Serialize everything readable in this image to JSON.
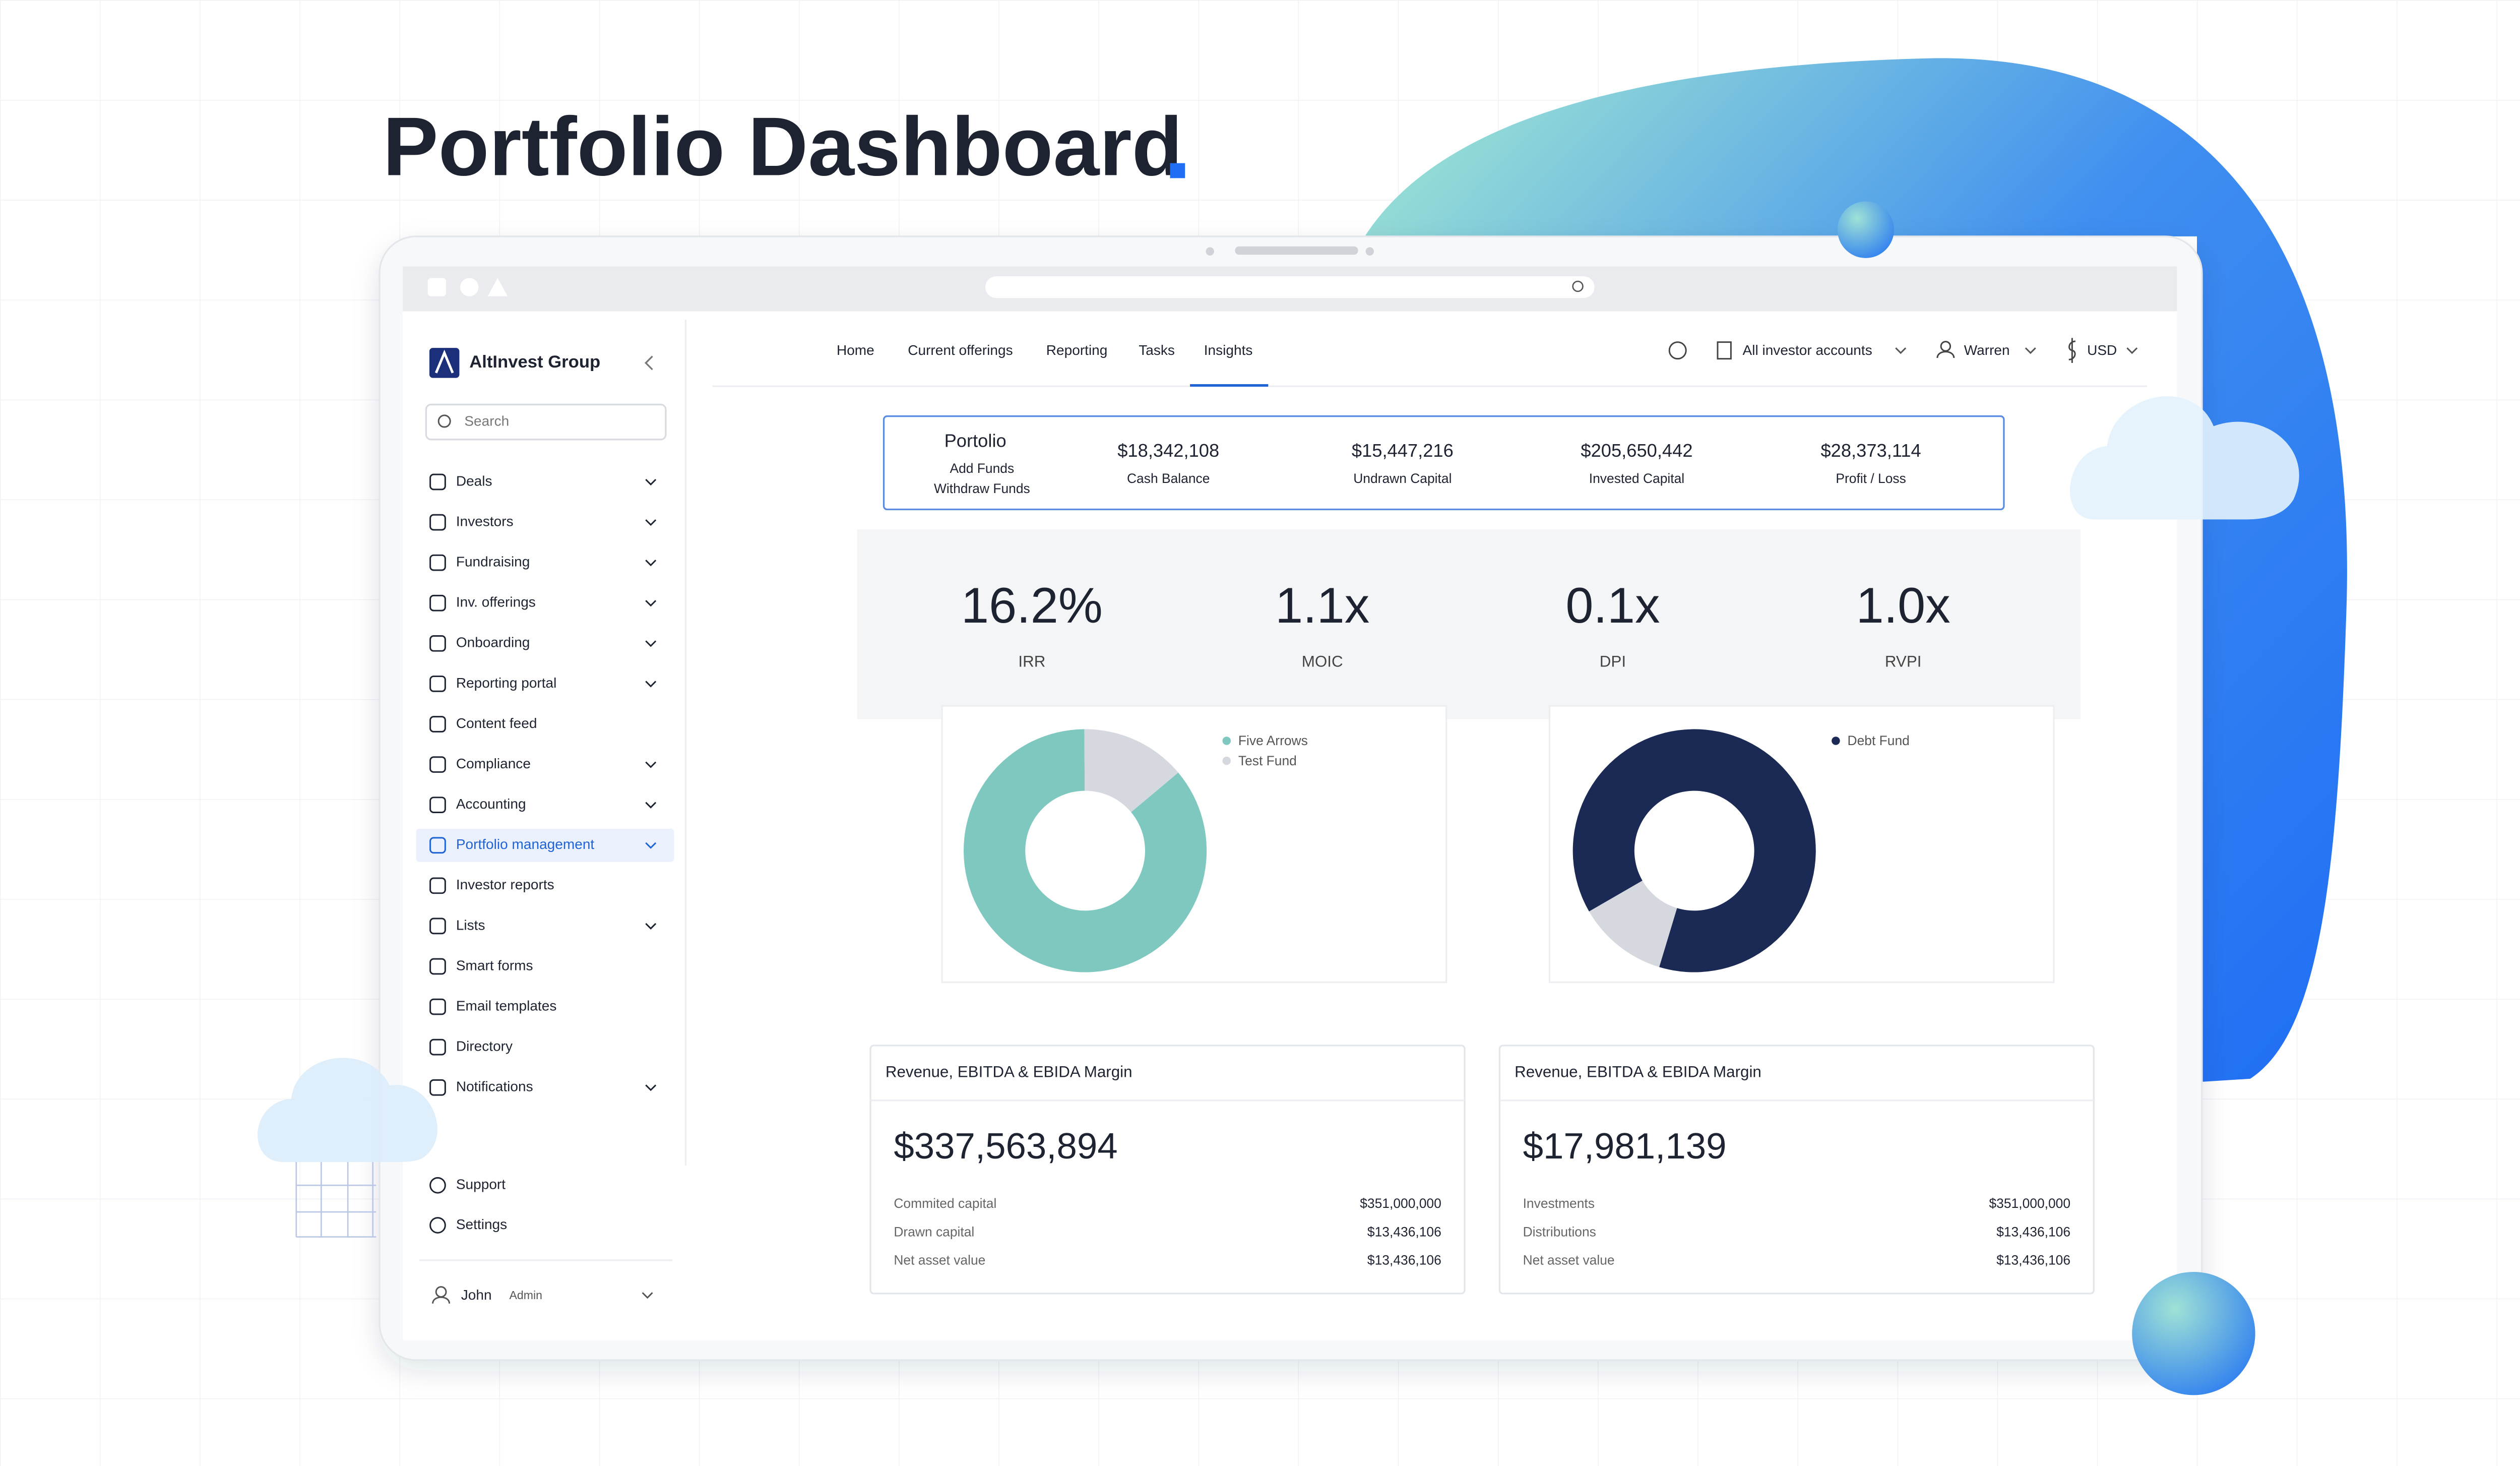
{
  "title": "Portfolio Dashboard",
  "sidebar": {
    "brand": "AltInvest Group",
    "search": "Search",
    "active": 9,
    "items": [
      {
        "label": "Deals",
        "expandable": true
      },
      {
        "label": "Investors",
        "expandable": true
      },
      {
        "label": "Fundraising",
        "expandable": true
      },
      {
        "label": "Inv. offerings",
        "expandable": true
      },
      {
        "label": "Onboarding",
        "expandable": true
      },
      {
        "label": "Reporting portal",
        "expandable": true
      },
      {
        "label": "Content feed",
        "expandable": false
      },
      {
        "label": "Compliance",
        "expandable": true
      },
      {
        "label": "Accounting",
        "expandable": true
      },
      {
        "label": "Portfolio management",
        "expandable": true
      },
      {
        "label": "Investor reports",
        "expandable": false
      },
      {
        "label": "Lists",
        "expandable": true
      },
      {
        "label": "Smart forms",
        "expandable": false
      },
      {
        "label": "Email templates",
        "expandable": false
      },
      {
        "label": "Directory",
        "expandable": false
      },
      {
        "label": "Notifications",
        "expandable": true
      }
    ],
    "footer": [
      "Support",
      "Settings"
    ],
    "user": {
      "name": "John",
      "role": "Admin"
    }
  },
  "nav": {
    "links": [
      "Home",
      "Current offerings",
      "Reporting",
      "Tasks",
      "Insights"
    ],
    "active": 4,
    "accounts": "All investor accounts",
    "user": "Warren",
    "currency": "USD"
  },
  "portfolio": {
    "title": "Portolio",
    "actions": [
      "Add Funds",
      "Withdraw Funds"
    ],
    "stats": [
      {
        "value": "$18,342,108",
        "label": "Cash Balance"
      },
      {
        "value": "$15,447,216",
        "label": "Undrawn Capital"
      },
      {
        "value": "$205,650,442",
        "label": "Invested Capital"
      },
      {
        "value": "$28,373,114",
        "label": "Profit / Loss"
      }
    ]
  },
  "metrics": [
    {
      "value": "16.2%",
      "label": "IRR"
    },
    {
      "value": "1.1x",
      "label": "MOIC"
    },
    {
      "value": "0.1x",
      "label": "DPI"
    },
    {
      "value": "1.0x",
      "label": "RVPI"
    }
  ],
  "chart_data": [
    {
      "type": "pie",
      "categories": [
        "Five Arrows",
        "Test Fund"
      ],
      "values": [
        86,
        14
      ],
      "colors": [
        "#7fc8bf",
        "#d5d8de"
      ]
    },
    {
      "type": "pie",
      "categories": [
        "Debt Fund",
        null
      ],
      "values": [
        88,
        12
      ],
      "colors": [
        "#1b2a55",
        "#d5d8de"
      ]
    }
  ],
  "cards": [
    {
      "title": "Revenue, EBITDA & EBIDA Margin",
      "value": "$337,563,894",
      "rows": [
        [
          "Commited capital",
          "$351,000,000"
        ],
        [
          "Drawn capital",
          "$13,436,106"
        ],
        [
          "Net asset value",
          "$13,436,106"
        ]
      ]
    },
    {
      "title": "Revenue, EBITDA & EBIDA Margin",
      "value": "$17,981,139",
      "rows": [
        [
          "Investments",
          "$351,000,000"
        ],
        [
          "Distributions",
          "$13,436,106"
        ],
        [
          "Net asset value",
          "$13,436,106"
        ]
      ]
    }
  ]
}
